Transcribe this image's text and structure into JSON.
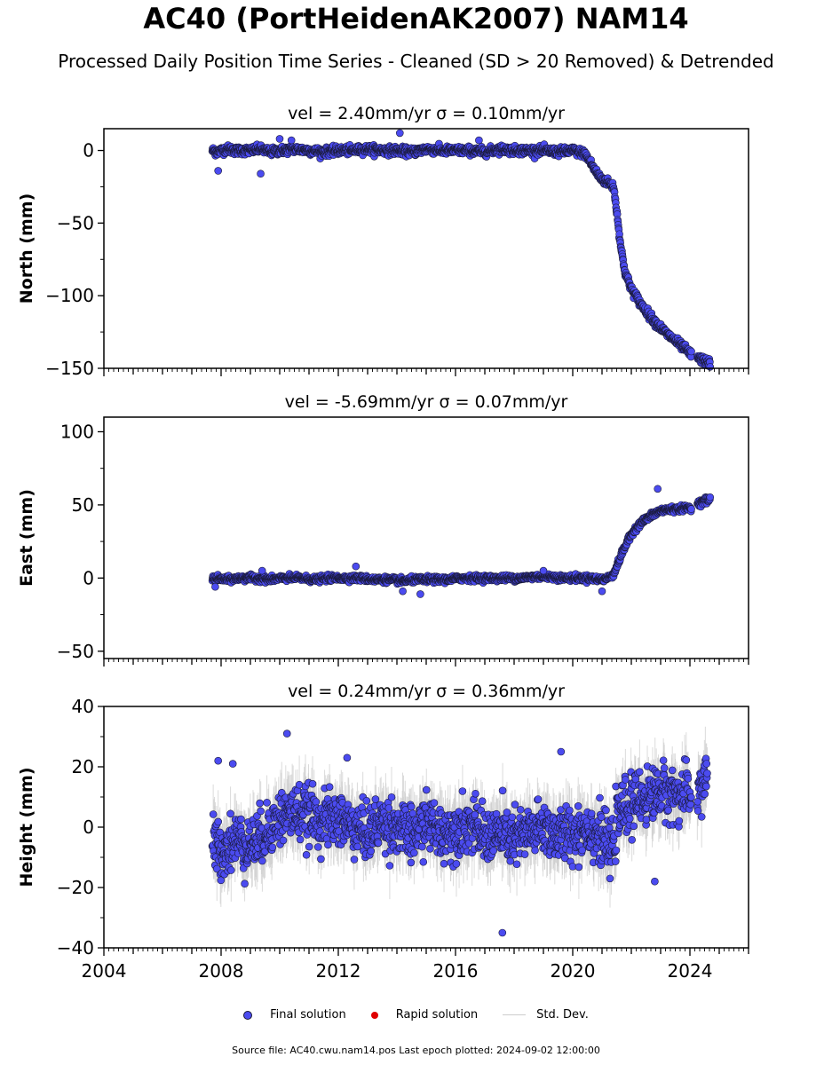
{
  "title": "AC40 (PortHeidenAK2007) NAM14",
  "subtitle": "Processed Daily Position Time Series - Cleaned (SD > 20 Removed) & Detrended",
  "legend": {
    "final": "Final solution",
    "rapid": "Rapid solution",
    "stddev": "Std. Dev."
  },
  "footer": "Source file: AC40.cwu.nam14.pos  Last epoch plotted: 2024-09-02 12:00:00",
  "colors": {
    "final": "#4b4bf0",
    "rapid": "#e00000",
    "stddev": "#cccccc",
    "edge": "#1a1a3a"
  },
  "chart_data": [
    {
      "type": "scatter",
      "title": "vel = 2.40mm/yr   σ = 0.10mm/yr",
      "ylabel": "North (mm)",
      "xlim": [
        2004,
        2026
      ],
      "ylim": [
        -150,
        15
      ],
      "yticks": [
        0,
        -50,
        -100,
        -150
      ],
      "xticks": [
        2004,
        2008,
        2012,
        2016,
        2020,
        2024
      ],
      "series": [
        {
          "name": "Final solution",
          "x": [
            2007.7,
            2007.85,
            2008.2,
            2008.5,
            2009.0,
            2009.3,
            2009.7,
            2010.0,
            2010.5,
            2011.0,
            2011.5,
            2012.0,
            2012.5,
            2013.0,
            2013.5,
            2014.0,
            2014.5,
            2015.0,
            2015.5,
            2016.0,
            2016.5,
            2017.0,
            2017.5,
            2018.0,
            2018.5,
            2019.0,
            2019.5,
            2020.0,
            2020.4,
            2020.6,
            2020.8,
            2021.0,
            2021.2,
            2021.4,
            2021.55,
            2021.65,
            2021.8,
            2022.0,
            2022.3,
            2022.6,
            2022.9,
            2023.2,
            2023.5,
            2023.8,
            2024.0,
            2024.3,
            2024.5,
            2024.7
          ],
          "y": [
            0,
            -1,
            1,
            0,
            0,
            1,
            -1,
            0,
            1,
            0,
            -1,
            0,
            0,
            1,
            0,
            0,
            -1,
            1,
            0,
            0,
            0,
            -1,
            1,
            0,
            0,
            0,
            -1,
            0,
            -2,
            -8,
            -15,
            -20,
            -22,
            -25,
            -50,
            -68,
            -85,
            -95,
            -105,
            -113,
            -120,
            -126,
            -131,
            -136,
            -140,
            -143,
            -145,
            -147
          ],
          "outliers_x": [
            2007.9,
            2009.35,
            2010.0,
            2010.4,
            2014.1,
            2016.8
          ],
          "outliers_y": [
            -14,
            -16,
            8,
            7,
            12,
            7
          ],
          "spread": 2.5
        }
      ]
    },
    {
      "type": "scatter",
      "title": "vel = -5.69mm/yr   σ = 0.07mm/yr",
      "ylabel": "East (mm)",
      "xlim": [
        2004,
        2026
      ],
      "ylim": [
        -55,
        110
      ],
      "yticks": [
        100,
        50,
        0,
        -50
      ],
      "xticks": [
        2004,
        2008,
        2012,
        2016,
        2020,
        2024
      ],
      "series": [
        {
          "name": "Final solution",
          "x": [
            2007.7,
            2008.2,
            2008.7,
            2009.2,
            2009.7,
            2010.2,
            2010.7,
            2011.2,
            2011.7,
            2012.2,
            2012.7,
            2013.2,
            2013.7,
            2014.2,
            2014.7,
            2015.2,
            2015.7,
            2016.2,
            2016.7,
            2017.2,
            2017.7,
            2018.2,
            2018.7,
            2019.2,
            2019.7,
            2020.2,
            2020.6,
            2021.0,
            2021.2,
            2021.4,
            2021.55,
            2021.7,
            2021.9,
            2022.1,
            2022.4,
            2022.7,
            2023.0,
            2023.3,
            2023.6,
            2023.9,
            2024.0,
            2024.3,
            2024.5,
            2024.7
          ],
          "y": [
            0,
            -1,
            0,
            0,
            -1,
            0,
            0,
            -1,
            0,
            0,
            0,
            -1,
            -1,
            -2,
            -1,
            -1,
            -1,
            0,
            0,
            0,
            0,
            0,
            1,
            1,
            0,
            0,
            0,
            -1,
            0,
            3,
            10,
            18,
            26,
            33,
            39,
            43,
            46,
            47,
            47,
            48,
            48,
            51,
            53,
            54
          ],
          "outliers_x": [
            2007.8,
            2009.4,
            2012.6,
            2014.2,
            2014.8,
            2019.0,
            2021.0,
            2022.9
          ],
          "outliers_y": [
            -6,
            5,
            8,
            -9,
            -11,
            5,
            -9,
            61
          ],
          "spread": 1.8
        }
      ]
    },
    {
      "type": "scatter",
      "title": "vel = 0.24mm/yr   σ = 0.36mm/yr",
      "ylabel": "Height (mm)",
      "xlim": [
        2004,
        2026
      ],
      "ylim": [
        -40,
        40
      ],
      "yticks": [
        40,
        20,
        0,
        -20,
        -40
      ],
      "xticks": [
        2004,
        2008,
        2012,
        2016,
        2020,
        2024
      ],
      "series": [
        {
          "name": "Final solution",
          "x": [
            2007.7,
            2008.0,
            2008.5,
            2009.0,
            2009.5,
            2010.0,
            2010.5,
            2011.0,
            2011.5,
            2012.0,
            2012.5,
            2013.0,
            2013.5,
            2014.0,
            2014.5,
            2015.0,
            2015.5,
            2016.0,
            2016.5,
            2017.0,
            2017.5,
            2018.0,
            2018.5,
            2019.0,
            2019.5,
            2020.0,
            2020.5,
            2021.0,
            2021.3,
            2021.6,
            2022.0,
            2022.5,
            2023.0,
            2023.5,
            2024.0,
            2024.3,
            2024.6
          ],
          "y": [
            -5,
            -8,
            -4,
            -6,
            -2,
            3,
            5,
            4,
            2,
            3,
            0,
            -2,
            2,
            0,
            -3,
            2,
            -2,
            -1,
            1,
            -3,
            -2,
            -4,
            -2,
            0,
            -3,
            -2,
            0,
            -4,
            -8,
            5,
            8,
            10,
            12,
            11,
            10,
            12,
            18
          ],
          "outliers_x": [
            2007.9,
            2008.4,
            2010.25,
            2012.3,
            2017.6,
            2019.6,
            2022.8
          ],
          "outliers_y": [
            22,
            21,
            31,
            23,
            -35,
            25,
            -18
          ],
          "spread": 8
        }
      ]
    }
  ]
}
